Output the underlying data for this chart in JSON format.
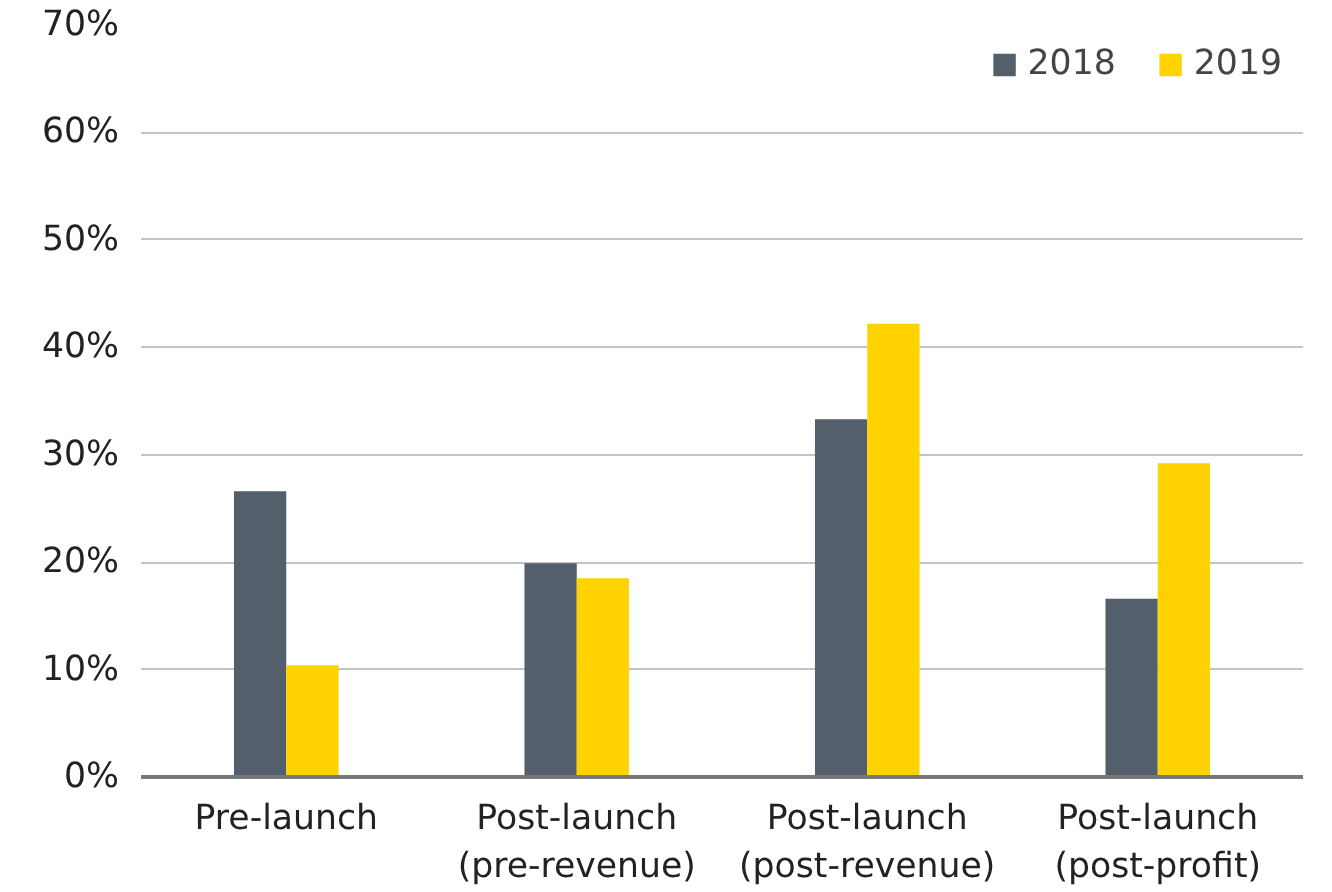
{
  "chart_data": {
    "type": "bar",
    "categories": [
      "Pre-launch",
      "Post-launch\n(pre-revenue)",
      "Post-launch\n(post-revenue)",
      "Post-launch\n(post-profit)"
    ],
    "series": [
      {
        "name": "2018",
        "color": "#535f6b",
        "values": [
          26.6,
          19.9,
          33.3,
          16.6
        ]
      },
      {
        "name": "2019",
        "color": "#ffd200",
        "values": [
          10.4,
          18.5,
          42.2,
          29.2
        ]
      }
    ],
    "ylim": [
      0,
      70
    ],
    "yticks": [
      {
        "value": 0,
        "label": "0%"
      },
      {
        "value": 10,
        "label": "10%"
      },
      {
        "value": 20,
        "label": "20%"
      },
      {
        "value": 30,
        "label": "30%"
      },
      {
        "value": 40,
        "label": "40%"
      },
      {
        "value": 50,
        "label": "50%"
      },
      {
        "value": 60,
        "label": "60%"
      },
      {
        "value": 70,
        "label": "70%"
      }
    ],
    "grid": "y",
    "legend": "top right"
  }
}
